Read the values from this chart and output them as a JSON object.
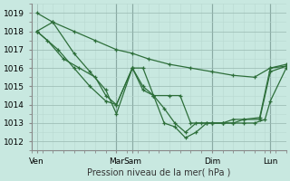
{
  "bg_color": "#c8e8e0",
  "line_color": "#2d6e3a",
  "grid_color_minor": "#b8d8d0",
  "grid_color_major": "#98b8b0",
  "xlabel": "Pression niveau de la mer( hPa )",
  "ylim": [
    1011.5,
    1019.5
  ],
  "yticks": [
    1012,
    1013,
    1014,
    1015,
    1016,
    1017,
    1018,
    1019
  ],
  "xlim": [
    0,
    24
  ],
  "xtick_positions": [
    0.5,
    8.0,
    9.5,
    17.0,
    22.5
  ],
  "xtick_labels": [
    "Ven",
    "Mar",
    "Sam",
    "Dim",
    "Lun"
  ],
  "vline_positions": [
    8.0,
    9.5,
    17.0,
    22.5
  ],
  "series": [
    {
      "x": [
        0.5,
        2.0,
        4.0,
        6.0,
        8.0,
        9.5,
        11.0,
        13.0,
        15.0,
        17.0,
        19.0,
        21.0,
        22.5,
        24.0
      ],
      "y": [
        1019.0,
        1018.5,
        1018.0,
        1017.5,
        1017.0,
        1016.8,
        1016.5,
        1016.2,
        1016.0,
        1015.8,
        1015.6,
        1015.5,
        1016.0,
        1016.2
      ]
    },
    {
      "x": [
        0.5,
        2.0,
        4.0,
        5.5,
        7.0,
        8.0,
        9.5,
        10.5,
        11.5,
        13.0,
        14.0,
        15.0,
        16.0,
        17.0,
        18.0,
        19.0,
        20.0,
        21.0,
        22.0,
        22.5,
        24.0
      ],
      "y": [
        1018.0,
        1018.5,
        1016.8,
        1015.8,
        1014.8,
        1013.5,
        1016.0,
        1016.0,
        1014.5,
        1014.5,
        1014.5,
        1013.0,
        1013.0,
        1013.0,
        1013.0,
        1013.0,
        1013.0,
        1013.0,
        1013.2,
        1014.2,
        1016.0
      ]
    },
    {
      "x": [
        0.5,
        2.5,
        4.0,
        5.5,
        7.0,
        8.0,
        9.5,
        10.5,
        11.5,
        12.5,
        13.5,
        14.5,
        15.5,
        16.5,
        17.0,
        18.0,
        19.0,
        20.0,
        21.5,
        22.5,
        24.0
      ],
      "y": [
        1018.0,
        1017.0,
        1016.0,
        1015.0,
        1014.2,
        1014.0,
        1016.0,
        1014.8,
        1014.5,
        1013.0,
        1012.8,
        1012.2,
        1012.5,
        1013.0,
        1013.0,
        1013.0,
        1013.0,
        1013.2,
        1013.2,
        1015.8,
        1016.1
      ]
    },
    {
      "x": [
        0.5,
        1.5,
        3.0,
        4.5,
        6.0,
        7.0,
        8.0,
        9.5,
        10.5,
        11.5,
        12.5,
        13.5,
        14.5,
        15.5,
        16.5,
        17.0,
        18.0,
        19.0,
        20.0,
        21.5,
        22.5,
        24.0
      ],
      "y": [
        1018.0,
        1017.5,
        1016.5,
        1016.0,
        1015.5,
        1014.5,
        1014.0,
        1016.0,
        1015.0,
        1014.5,
        1013.8,
        1013.0,
        1012.5,
        1013.0,
        1013.0,
        1013.0,
        1013.0,
        1013.2,
        1013.2,
        1013.3,
        1016.0,
        1016.1
      ]
    }
  ]
}
